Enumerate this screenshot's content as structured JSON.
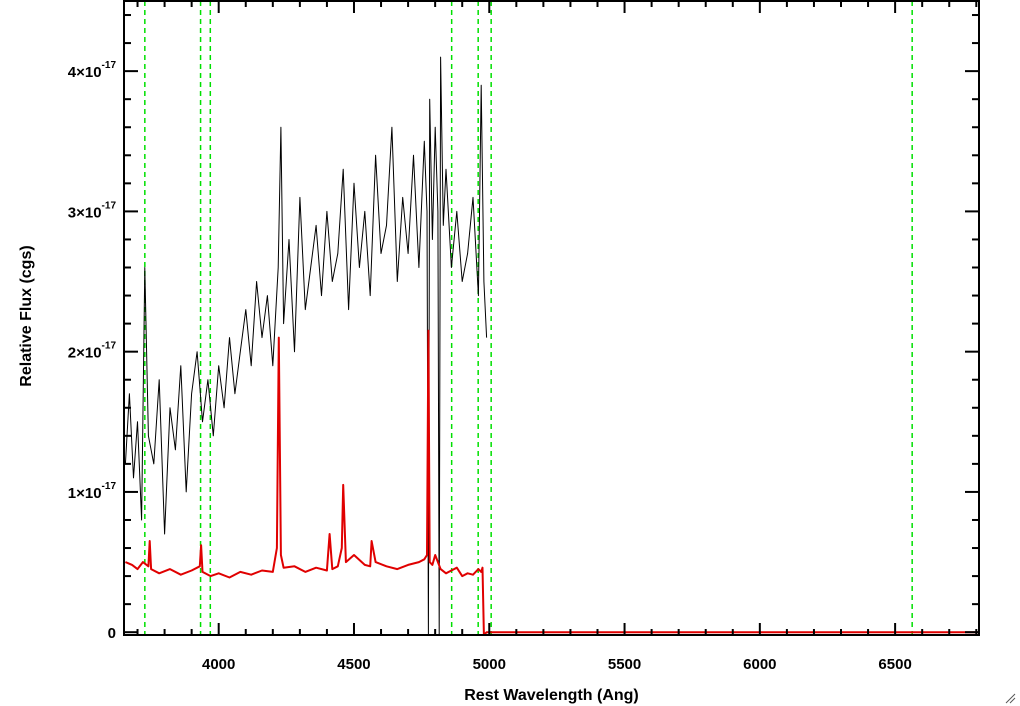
{
  "chart_data": {
    "type": "line",
    "xlabel": "Rest Wavelength (Ang)",
    "ylabel": "Relative Flux (cgs)",
    "xlim": [
      3650,
      6810
    ],
    "ylim": [
      -0.02,
      4.5
    ],
    "y_exponent": "-17",
    "x_ticks": [
      {
        "value": 4000,
        "label": "4000"
      },
      {
        "value": 4500,
        "label": "4500"
      },
      {
        "value": 5000,
        "label": "5000"
      },
      {
        "value": 5500,
        "label": "5500"
      },
      {
        "value": 6000,
        "label": "6000"
      },
      {
        "value": 6500,
        "label": "6500"
      }
    ],
    "y_ticks": [
      {
        "value": 0,
        "label": "0",
        "exp": ""
      },
      {
        "value": 1,
        "label": "1×10",
        "exp": "-17"
      },
      {
        "value": 2,
        "label": "2×10",
        "exp": "-17"
      },
      {
        "value": 3,
        "label": "3×10",
        "exp": "-17"
      },
      {
        "value": 4,
        "label": "4×10",
        "exp": "-17"
      }
    ],
    "vertical_lines": [
      3727,
      3933,
      3969,
      4861,
      4959,
      5007,
      6563
    ],
    "series": [
      {
        "color": "#000000",
        "x": [
          3655,
          3670,
          3685,
          3700,
          3715,
          3727,
          3740,
          3760,
          3780,
          3800,
          3820,
          3840,
          3860,
          3880,
          3900,
          3920,
          3940,
          3960,
          3980,
          4000,
          4020,
          4040,
          4060,
          4080,
          4100,
          4120,
          4140,
          4160,
          4180,
          4200,
          4220,
          4230,
          4240,
          4260,
          4280,
          4300,
          4320,
          4340,
          4360,
          4380,
          4400,
          4420,
          4440,
          4460,
          4480,
          4500,
          4520,
          4540,
          4560,
          4580,
          4600,
          4620,
          4640,
          4660,
          4680,
          4700,
          4720,
          4740,
          4760,
          4770,
          4775,
          4780,
          4790,
          4800,
          4810,
          4815,
          4820,
          4830,
          4840,
          4860,
          4880,
          4900,
          4920,
          4940,
          4960,
          4970,
          4980,
          4990
        ],
        "y": [
          1.2,
          1.7,
          1.1,
          1.5,
          0.8,
          2.6,
          1.4,
          1.2,
          1.8,
          0.7,
          1.6,
          1.3,
          1.9,
          1.0,
          1.7,
          2.0,
          1.5,
          1.8,
          1.4,
          1.9,
          1.6,
          2.1,
          1.7,
          2.0,
          2.3,
          1.9,
          2.5,
          2.1,
          2.4,
          1.9,
          2.6,
          3.6,
          2.2,
          2.8,
          2.0,
          3.1,
          2.3,
          2.6,
          2.9,
          2.4,
          3.0,
          2.5,
          2.7,
          3.3,
          2.3,
          3.2,
          2.6,
          3.0,
          2.4,
          3.4,
          2.7,
          2.9,
          3.6,
          2.5,
          3.1,
          2.7,
          3.4,
          2.6,
          3.5,
          3.0,
          -0.05,
          3.8,
          2.8,
          3.6,
          3.0,
          -0.05,
          4.1,
          2.9,
          3.3,
          2.6,
          3.0,
          2.5,
          2.7,
          3.1,
          2.4,
          3.9,
          2.5,
          2.1
        ]
      },
      {
        "color": "#e00000",
        "x": [
          3655,
          3680,
          3700,
          3720,
          3740,
          3745,
          3750,
          3780,
          3820,
          3860,
          3900,
          3930,
          3935,
          3940,
          3970,
          4000,
          4040,
          4080,
          4120,
          4160,
          4200,
          4215,
          4222,
          4230,
          4240,
          4280,
          4320,
          4360,
          4400,
          4410,
          4420,
          4440,
          4455,
          4460,
          4470,
          4500,
          4540,
          4560,
          4565,
          4580,
          4620,
          4660,
          4700,
          4740,
          4760,
          4770,
          4775,
          4780,
          4790,
          4800,
          4820,
          4840,
          4860,
          4880,
          4900,
          4920,
          4940,
          4960,
          4970,
          4975,
          4980,
          4990,
          5000,
          5500,
          6000,
          6500,
          6810
        ],
        "y": [
          0.5,
          0.48,
          0.45,
          0.5,
          0.47,
          0.65,
          0.45,
          0.42,
          0.45,
          0.41,
          0.44,
          0.47,
          0.62,
          0.43,
          0.4,
          0.42,
          0.39,
          0.43,
          0.41,
          0.44,
          0.43,
          0.6,
          2.1,
          0.55,
          0.46,
          0.47,
          0.43,
          0.46,
          0.44,
          0.7,
          0.45,
          0.47,
          0.6,
          1.05,
          0.5,
          0.55,
          0.48,
          0.47,
          0.65,
          0.5,
          0.47,
          0.45,
          0.48,
          0.5,
          0.52,
          0.55,
          2.15,
          0.5,
          0.48,
          0.55,
          0.45,
          0.42,
          0.44,
          0.46,
          0.4,
          0.42,
          0.41,
          0.45,
          0.43,
          0.46,
          -0.05,
          0,
          0,
          0,
          0,
          0,
          0
        ]
      }
    ]
  }
}
